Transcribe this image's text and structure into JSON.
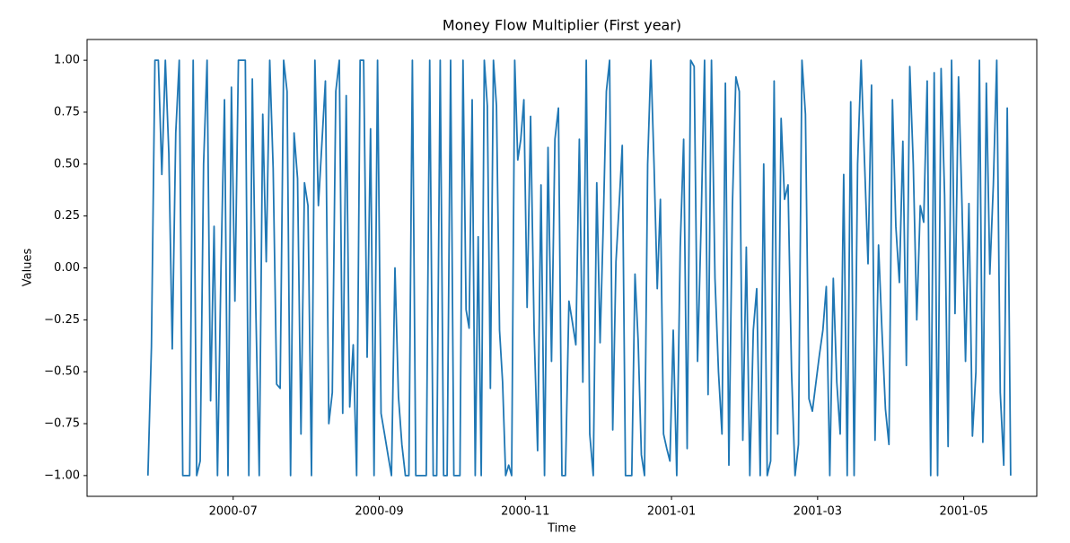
{
  "chart_data": {
    "type": "line",
    "title": "Money Flow Multiplier (First year)",
    "x_label": "Time",
    "y_label": "Values",
    "color": "#1f77b4",
    "x": [
      "2000-05",
      "2000-05",
      "2000-05",
      "2000-05",
      "2000-06",
      "2000-06",
      "2000-06",
      "2000-06",
      "2000-06",
      "2000-06",
      "2000-06",
      "2000-06",
      "2000-06",
      "2000-06",
      "2000-06",
      "2000-06",
      "2000-06",
      "2000-06",
      "2000-06",
      "2000-06",
      "2000-06",
      "2000-06",
      "2000-06",
      "2000-06",
      "2000-06",
      "2000-07",
      "2000-07",
      "2000-07",
      "2000-07",
      "2000-07",
      "2000-07",
      "2000-07",
      "2000-07",
      "2000-07",
      "2000-07",
      "2000-07",
      "2000-07",
      "2000-07",
      "2000-07",
      "2000-07",
      "2000-07",
      "2000-07",
      "2000-07",
      "2000-07",
      "2000-07",
      "2000-07",
      "2000-08",
      "2000-08",
      "2000-08",
      "2000-08",
      "2000-08",
      "2000-08",
      "2000-08",
      "2000-08",
      "2000-08",
      "2000-08",
      "2000-08",
      "2000-08",
      "2000-08",
      "2000-08",
      "2000-08",
      "2000-08",
      "2000-08",
      "2000-08",
      "2000-08",
      "2000-08",
      "2000-08",
      "2000-09",
      "2000-09",
      "2000-09",
      "2000-09",
      "2000-09",
      "2000-09",
      "2000-09",
      "2000-09",
      "2000-09",
      "2000-09",
      "2000-09",
      "2000-09",
      "2000-09",
      "2000-09",
      "2000-09",
      "2000-09",
      "2000-09",
      "2000-09",
      "2000-09",
      "2000-09",
      "2000-09",
      "2000-10",
      "2000-10",
      "2000-10",
      "2000-10",
      "2000-10",
      "2000-10",
      "2000-10",
      "2000-10",
      "2000-10",
      "2000-10",
      "2000-10",
      "2000-10",
      "2000-10",
      "2000-10",
      "2000-10",
      "2000-10",
      "2000-10",
      "2000-10",
      "2000-10",
      "2000-10",
      "2000-10",
      "2000-10",
      "2000-10",
      "2000-10",
      "2000-11",
      "2000-11",
      "2000-11",
      "2000-11",
      "2000-11",
      "2000-11",
      "2000-11",
      "2000-11",
      "2000-11",
      "2000-11",
      "2000-11",
      "2000-11",
      "2000-11",
      "2000-11",
      "2000-11",
      "2000-11",
      "2000-11",
      "2000-11",
      "2000-11",
      "2000-11",
      "2000-11",
      "2000-12",
      "2000-12",
      "2000-12",
      "2000-12",
      "2000-12",
      "2000-12",
      "2000-12",
      "2000-12",
      "2000-12",
      "2000-12",
      "2000-12",
      "2000-12",
      "2000-12",
      "2000-12",
      "2000-12",
      "2000-12",
      "2000-12",
      "2000-12",
      "2000-12",
      "2000-12",
      "2000-12",
      "2000-12",
      "2000-12",
      "2001-01",
      "2001-01",
      "2001-01",
      "2001-01",
      "2001-01",
      "2001-01",
      "2001-01",
      "2001-01",
      "2001-01",
      "2001-01",
      "2001-01",
      "2001-01",
      "2001-01",
      "2001-01",
      "2001-01",
      "2001-01",
      "2001-01",
      "2001-01",
      "2001-01",
      "2001-01",
      "2001-01",
      "2001-02",
      "2001-02",
      "2001-02",
      "2001-02",
      "2001-02",
      "2001-02",
      "2001-02",
      "2001-02",
      "2001-02",
      "2001-02",
      "2001-02",
      "2001-02",
      "2001-02",
      "2001-02",
      "2001-02",
      "2001-02",
      "2001-02",
      "2001-02",
      "2001-02",
      "2001-02",
      "2001-03",
      "2001-03",
      "2001-03",
      "2001-03",
      "2001-03",
      "2001-03",
      "2001-03",
      "2001-03",
      "2001-03",
      "2001-03",
      "2001-03",
      "2001-03",
      "2001-03",
      "2001-03",
      "2001-03",
      "2001-03",
      "2001-03",
      "2001-03",
      "2001-03",
      "2001-03",
      "2001-03",
      "2001-04",
      "2001-04",
      "2001-04",
      "2001-04",
      "2001-04",
      "2001-04",
      "2001-04",
      "2001-04",
      "2001-04",
      "2001-04",
      "2001-04",
      "2001-04",
      "2001-04",
      "2001-04",
      "2001-04",
      "2001-04",
      "2001-04",
      "2001-04",
      "2001-04",
      "2001-04",
      "2001-04",
      "2001-05",
      "2001-05",
      "2001-05",
      "2001-05",
      "2001-05",
      "2001-05",
      "2001-05",
      "2001-05",
      "2001-05",
      "2001-05",
      "2001-05",
      "2001-05",
      "2001-05",
      "2001-05"
    ],
    "values": [
      -1,
      -0.38,
      1,
      1,
      0.45,
      1,
      0.55,
      -0.39,
      0.65,
      1,
      -1,
      -1,
      -1,
      1,
      -1,
      -0.93,
      0.5,
      1,
      -0.64,
      0.2,
      -1,
      0,
      0.81,
      -1,
      0.87,
      -0.16,
      1,
      1,
      1,
      -1,
      0.91,
      -0.2,
      -1,
      0.74,
      0.03,
      1,
      0.48,
      -0.56,
      -0.58,
      1,
      0.85,
      -1,
      0.65,
      0.43,
      -0.8,
      0.41,
      0.3,
      -1,
      1,
      0.3,
      0.6,
      0.9,
      -0.75,
      -0.6,
      0.85,
      1,
      -0.7,
      0.83,
      -0.67,
      -0.37,
      -1,
      1,
      1,
      -0.43,
      0.67,
      -1,
      1,
      -0.7,
      -0.8,
      -0.9,
      -1,
      0,
      -0.62,
      -0.85,
      -1,
      -1,
      1,
      -1,
      -1,
      -1,
      -1,
      1,
      -1,
      -1,
      1,
      -1,
      -1,
      1,
      -1,
      -1,
      -1,
      1,
      -0.2,
      -0.29,
      0.81,
      -1,
      0.15,
      -1,
      1,
      0.78,
      -0.58,
      1,
      0.78,
      -0.3,
      -0.55,
      -1,
      -0.95,
      -1,
      1,
      0.52,
      0.62,
      0.81,
      -0.19,
      0.73,
      -0.3,
      -0.88,
      0.4,
      -1,
      0.58,
      -0.45,
      0.62,
      0.77,
      -1,
      -1,
      -0.16,
      -0.26,
      -0.37,
      0.62,
      -0.55,
      1,
      -0.8,
      -1,
      0.41,
      -0.36,
      0.2,
      0.85,
      1,
      -0.78,
      0.03,
      0.3,
      0.59,
      -1,
      -1,
      -1,
      -0.03,
      -0.35,
      -0.9,
      -1,
      0.5,
      1,
      0.5,
      -0.1,
      0.33,
      -0.8,
      -0.87,
      -0.93,
      -0.3,
      -1,
      0.1,
      0.62,
      -0.87,
      1,
      0.97,
      -0.45,
      0.2,
      1,
      -0.61,
      1,
      -0.05,
      -0.5,
      -0.8,
      0.89,
      -0.95,
      0.3,
      0.92,
      0.85,
      -0.83,
      0.1,
      -1,
      -0.3,
      -0.1,
      -1,
      0.5,
      -1,
      -0.93,
      0.9,
      -0.8,
      0.72,
      0.33,
      0.4,
      -0.5,
      -1,
      -0.85,
      1,
      0.74,
      -0.63,
      -0.69,
      -0.42,
      -0.3,
      -0.09,
      -1,
      -0.05,
      -0.55,
      -0.8,
      0.45,
      -1,
      0.8,
      -1,
      0.5,
      1,
      0.5,
      0.02,
      0.88,
      -0.83,
      0.11,
      -0.3,
      -0.68,
      -0.85,
      0.81,
      0.2,
      -0.07,
      0.61,
      -0.47,
      0.97,
      0.5,
      -0.25,
      0.3,
      0.22,
      0.9,
      -1,
      0.94,
      -1,
      0.96,
      0.35,
      -0.86,
      1,
      -0.22,
      0.92,
      0.3,
      -0.45,
      0.31,
      -0.81,
      -0.5,
      1,
      -0.84,
      0.89,
      -0.03,
      0.4,
      1,
      -0.6,
      -0.95,
      0.77,
      -1
    ],
    "xlim": [
      "2000-05",
      "2001-06"
    ],
    "xticks": [
      "2000-07",
      "2000-09",
      "2000-11",
      "2001-01",
      "2001-03",
      "2001-05"
    ],
    "ylim": [
      -1.1,
      1.1
    ],
    "yticks": [
      {
        "value": -1,
        "label": "−1.00"
      },
      {
        "value": -0.75,
        "label": "−0.75"
      },
      {
        "value": -0.5,
        "label": "−0.50"
      },
      {
        "value": -0.25,
        "label": "−0.25"
      },
      {
        "value": 0,
        "label": "0.00"
      },
      {
        "value": 0.25,
        "label": "0.25"
      },
      {
        "value": 0.5,
        "label": "0.50"
      },
      {
        "value": 0.75,
        "label": "0.75"
      },
      {
        "value": 1,
        "label": "1.00"
      }
    ],
    "grid": false
  }
}
